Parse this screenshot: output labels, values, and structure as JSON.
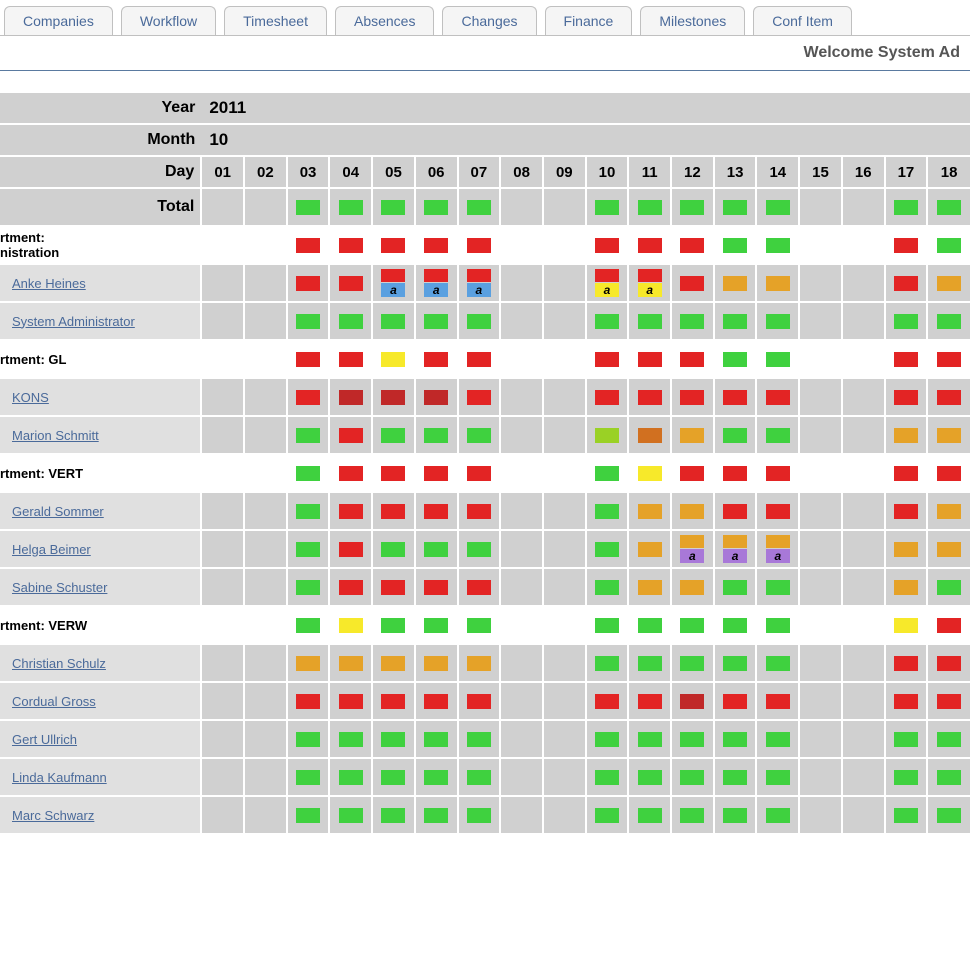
{
  "tabs": [
    "Companies",
    "Workflow",
    "Timesheet",
    "Absences",
    "Changes",
    "Finance",
    "Milestones",
    "Conf Item"
  ],
  "welcome_text": "Welcome System Ad",
  "labels": {
    "year": "Year",
    "month": "Month",
    "day": "Day",
    "total": "Total"
  },
  "year": "2011",
  "month": "10",
  "days": [
    "01",
    "02",
    "03",
    "04",
    "05",
    "06",
    "07",
    "08",
    "09",
    "10",
    "11",
    "12",
    "13",
    "14",
    "15",
    "16",
    "17",
    "18"
  ],
  "colors": {
    "green": "#3FD13F",
    "red": "#E32424",
    "darkred": "#C02828",
    "yellow": "#F7E92A",
    "orange": "#E5A228",
    "darkorange": "#D17020",
    "blue": "#5AA0E0",
    "purple": "#A878D8",
    "yelgreen": "#9AD125",
    "bg_gray": "#d0d0d0",
    "bg_user": "#e0e0e0",
    "link": "#4a6a9a"
  },
  "rows": [
    {
      "type": "total",
      "label": "Total",
      "cells": [
        "",
        "",
        "green",
        "green",
        "green",
        "green",
        "green",
        "",
        "",
        "green",
        "green",
        "green",
        "green",
        "green",
        "",
        "",
        "green",
        "green"
      ]
    },
    {
      "type": "dept",
      "label": "rtment:\nnistration",
      "cells": [
        "",
        "",
        "red",
        "red",
        "red",
        "red",
        "red",
        "",
        "",
        "red",
        "red",
        "red",
        "green",
        "green",
        "",
        "",
        "red",
        "green"
      ]
    },
    {
      "type": "user",
      "label": "Anke Heines",
      "cells": [
        "",
        "",
        "red",
        "red",
        [
          "red",
          "blue:a"
        ],
        [
          "red",
          "blue:a"
        ],
        [
          "red",
          "blue:a"
        ],
        "",
        "",
        [
          "red",
          "yellow:a"
        ],
        [
          "red",
          "yellow:a"
        ],
        "red",
        "orange",
        "orange",
        "",
        "",
        "red",
        "orange"
      ]
    },
    {
      "type": "user",
      "label": "System Administrator",
      "cells": [
        "",
        "",
        "green",
        "green",
        "green",
        "green",
        "green",
        "",
        "",
        "green",
        "green",
        "green",
        "green",
        "green",
        "",
        "",
        "green",
        "green"
      ]
    },
    {
      "type": "dept",
      "label": "rtment: GL",
      "cells": [
        "",
        "",
        "red",
        "red",
        "yellow",
        "red",
        "red",
        "",
        "",
        "red",
        "red",
        "red",
        "green",
        "green",
        "",
        "",
        "red",
        "red"
      ]
    },
    {
      "type": "user",
      "label": " KONS",
      "cells": [
        "",
        "",
        "red",
        "darkred",
        "darkred",
        "darkred",
        "red",
        "",
        "",
        "red",
        "red",
        "red",
        "red",
        "red",
        "",
        "",
        "red",
        "red"
      ]
    },
    {
      "type": "user",
      "label": "Marion Schmitt",
      "cells": [
        "",
        "",
        "green",
        "red",
        "green",
        "green",
        "green",
        "",
        "",
        "yelgreen",
        "darkorange",
        "orange",
        "green",
        "green",
        "",
        "",
        "orange",
        "orange"
      ]
    },
    {
      "type": "dept",
      "label": "rtment: VERT",
      "cells": [
        "",
        "",
        "green",
        "red",
        "red",
        "red",
        "red",
        "",
        "",
        "green",
        "yellow",
        "red",
        "red",
        "red",
        "",
        "",
        "red",
        "red"
      ]
    },
    {
      "type": "user",
      "label": "Gerald Sommer",
      "cells": [
        "",
        "",
        "green",
        "red",
        "red",
        "red",
        "red",
        "",
        "",
        "green",
        "orange",
        "orange",
        "red",
        "red",
        "",
        "",
        "red",
        "orange"
      ]
    },
    {
      "type": "user",
      "label": "Helga Beimer",
      "cells": [
        "",
        "",
        "green",
        "red",
        "green",
        "green",
        "green",
        "",
        "",
        "green",
        "orange",
        [
          "orange",
          "purple:a"
        ],
        [
          "orange",
          "purple:a"
        ],
        [
          "orange",
          "purple:a"
        ],
        "",
        "",
        "orange",
        "orange"
      ]
    },
    {
      "type": "user",
      "label": "Sabine Schuster",
      "cells": [
        "",
        "",
        "green",
        "red",
        "red",
        "red",
        "red",
        "",
        "",
        "green",
        "orange",
        "orange",
        "green",
        "green",
        "",
        "",
        "orange",
        "green"
      ]
    },
    {
      "type": "dept",
      "label": "rtment: VERW",
      "cells": [
        "",
        "",
        "green",
        "yellow",
        "green",
        "green",
        "green",
        "",
        "",
        "green",
        "green",
        "green",
        "green",
        "green",
        "",
        "",
        "yellow",
        "red"
      ]
    },
    {
      "type": "user",
      "label": "Christian Schulz",
      "cells": [
        "",
        "",
        "orange",
        "orange",
        "orange",
        "orange",
        "orange",
        "",
        "",
        "green",
        "green",
        "green",
        "green",
        "green",
        "",
        "",
        "red",
        "red"
      ]
    },
    {
      "type": "user",
      "label": "Cordual Gross",
      "cells": [
        "",
        "",
        "red",
        "red",
        "red",
        "red",
        "red",
        "",
        "",
        "red",
        "red",
        "darkred",
        "red",
        "red",
        "",
        "",
        "red",
        "red"
      ]
    },
    {
      "type": "user",
      "label": "Gert Ullrich",
      "cells": [
        "",
        "",
        "green",
        "green",
        "green",
        "green",
        "green",
        "",
        "",
        "green",
        "green",
        "green",
        "green",
        "green",
        "",
        "",
        "green",
        "green"
      ]
    },
    {
      "type": "user",
      "label": "Linda Kaufmann",
      "cells": [
        "",
        "",
        "green",
        "green",
        "green",
        "green",
        "green",
        "",
        "",
        "green",
        "green",
        "green",
        "green",
        "green",
        "",
        "",
        "green",
        "green"
      ]
    },
    {
      "type": "user",
      "label": "Marc Schwarz",
      "cells": [
        "",
        "",
        "green",
        "green",
        "green",
        "green",
        "green",
        "",
        "",
        "green",
        "green",
        "green",
        "green",
        "green",
        "",
        "",
        "green",
        "green"
      ]
    }
  ]
}
